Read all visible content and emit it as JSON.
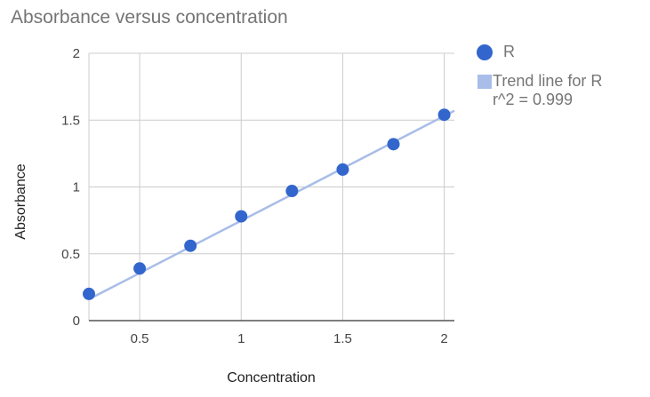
{
  "chart_data": {
    "type": "scatter",
    "title": "Absorbance versus concentration",
    "xlabel": "Concentration",
    "ylabel": "Absorbance",
    "xlim": [
      0.25,
      2.05
    ],
    "ylim": [
      0,
      2
    ],
    "x_ticks": [
      "0.5",
      "1",
      "1.5",
      "2"
    ],
    "x_tick_values": [
      0.5,
      1,
      1.5,
      2
    ],
    "y_ticks": [
      "0",
      "0.5",
      "1",
      "1.5",
      "2"
    ],
    "y_tick_values": [
      0,
      0.5,
      1,
      1.5,
      2
    ],
    "grid": true,
    "legend_position": "right",
    "series": [
      {
        "name": "R",
        "color": "#3366cc",
        "points": [
          {
            "x": 0.25,
            "y": 0.2
          },
          {
            "x": 0.5,
            "y": 0.39
          },
          {
            "x": 0.75,
            "y": 0.56
          },
          {
            "x": 1.0,
            "y": 0.78
          },
          {
            "x": 1.25,
            "y": 0.97
          },
          {
            "x": 1.5,
            "y": 1.13
          },
          {
            "x": 1.75,
            "y": 1.32
          },
          {
            "x": 2.0,
            "y": 1.54
          }
        ]
      }
    ],
    "trendline": {
      "label": "Trend line for R",
      "r2_label": "r^2 = 0.999",
      "color": "#a8bde8",
      "from": {
        "x": 0.25,
        "y": 0.16
      },
      "to": {
        "x": 2.05,
        "y": 1.57
      }
    }
  }
}
